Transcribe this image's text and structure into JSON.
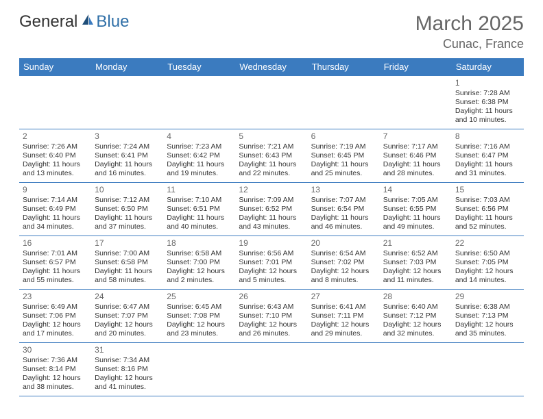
{
  "logo": {
    "general": "General",
    "blue": "Blue"
  },
  "title": "March 2025",
  "location": "Cunac, France",
  "weekdays": [
    "Sunday",
    "Monday",
    "Tuesday",
    "Wednesday",
    "Thursday",
    "Friday",
    "Saturday"
  ],
  "colors": {
    "header_bg": "#3b7bbf",
    "header_fg": "#ffffff",
    "border": "#3b7bbf",
    "title_fg": "#666666",
    "text_fg": "#333333",
    "logo_blue": "#2f6fa7"
  },
  "grid": [
    [
      null,
      null,
      null,
      null,
      null,
      null,
      {
        "day": "1",
        "sunrise": "Sunrise: 7:28 AM",
        "sunset": "Sunset: 6:38 PM",
        "daylight1": "Daylight: 11 hours",
        "daylight2": "and 10 minutes."
      }
    ],
    [
      {
        "day": "2",
        "sunrise": "Sunrise: 7:26 AM",
        "sunset": "Sunset: 6:40 PM",
        "daylight1": "Daylight: 11 hours",
        "daylight2": "and 13 minutes."
      },
      {
        "day": "3",
        "sunrise": "Sunrise: 7:24 AM",
        "sunset": "Sunset: 6:41 PM",
        "daylight1": "Daylight: 11 hours",
        "daylight2": "and 16 minutes."
      },
      {
        "day": "4",
        "sunrise": "Sunrise: 7:23 AM",
        "sunset": "Sunset: 6:42 PM",
        "daylight1": "Daylight: 11 hours",
        "daylight2": "and 19 minutes."
      },
      {
        "day": "5",
        "sunrise": "Sunrise: 7:21 AM",
        "sunset": "Sunset: 6:43 PM",
        "daylight1": "Daylight: 11 hours",
        "daylight2": "and 22 minutes."
      },
      {
        "day": "6",
        "sunrise": "Sunrise: 7:19 AM",
        "sunset": "Sunset: 6:45 PM",
        "daylight1": "Daylight: 11 hours",
        "daylight2": "and 25 minutes."
      },
      {
        "day": "7",
        "sunrise": "Sunrise: 7:17 AM",
        "sunset": "Sunset: 6:46 PM",
        "daylight1": "Daylight: 11 hours",
        "daylight2": "and 28 minutes."
      },
      {
        "day": "8",
        "sunrise": "Sunrise: 7:16 AM",
        "sunset": "Sunset: 6:47 PM",
        "daylight1": "Daylight: 11 hours",
        "daylight2": "and 31 minutes."
      }
    ],
    [
      {
        "day": "9",
        "sunrise": "Sunrise: 7:14 AM",
        "sunset": "Sunset: 6:49 PM",
        "daylight1": "Daylight: 11 hours",
        "daylight2": "and 34 minutes."
      },
      {
        "day": "10",
        "sunrise": "Sunrise: 7:12 AM",
        "sunset": "Sunset: 6:50 PM",
        "daylight1": "Daylight: 11 hours",
        "daylight2": "and 37 minutes."
      },
      {
        "day": "11",
        "sunrise": "Sunrise: 7:10 AM",
        "sunset": "Sunset: 6:51 PM",
        "daylight1": "Daylight: 11 hours",
        "daylight2": "and 40 minutes."
      },
      {
        "day": "12",
        "sunrise": "Sunrise: 7:09 AM",
        "sunset": "Sunset: 6:52 PM",
        "daylight1": "Daylight: 11 hours",
        "daylight2": "and 43 minutes."
      },
      {
        "day": "13",
        "sunrise": "Sunrise: 7:07 AM",
        "sunset": "Sunset: 6:54 PM",
        "daylight1": "Daylight: 11 hours",
        "daylight2": "and 46 minutes."
      },
      {
        "day": "14",
        "sunrise": "Sunrise: 7:05 AM",
        "sunset": "Sunset: 6:55 PM",
        "daylight1": "Daylight: 11 hours",
        "daylight2": "and 49 minutes."
      },
      {
        "day": "15",
        "sunrise": "Sunrise: 7:03 AM",
        "sunset": "Sunset: 6:56 PM",
        "daylight1": "Daylight: 11 hours",
        "daylight2": "and 52 minutes."
      }
    ],
    [
      {
        "day": "16",
        "sunrise": "Sunrise: 7:01 AM",
        "sunset": "Sunset: 6:57 PM",
        "daylight1": "Daylight: 11 hours",
        "daylight2": "and 55 minutes."
      },
      {
        "day": "17",
        "sunrise": "Sunrise: 7:00 AM",
        "sunset": "Sunset: 6:58 PM",
        "daylight1": "Daylight: 11 hours",
        "daylight2": "and 58 minutes."
      },
      {
        "day": "18",
        "sunrise": "Sunrise: 6:58 AM",
        "sunset": "Sunset: 7:00 PM",
        "daylight1": "Daylight: 12 hours",
        "daylight2": "and 2 minutes."
      },
      {
        "day": "19",
        "sunrise": "Sunrise: 6:56 AM",
        "sunset": "Sunset: 7:01 PM",
        "daylight1": "Daylight: 12 hours",
        "daylight2": "and 5 minutes."
      },
      {
        "day": "20",
        "sunrise": "Sunrise: 6:54 AM",
        "sunset": "Sunset: 7:02 PM",
        "daylight1": "Daylight: 12 hours",
        "daylight2": "and 8 minutes."
      },
      {
        "day": "21",
        "sunrise": "Sunrise: 6:52 AM",
        "sunset": "Sunset: 7:03 PM",
        "daylight1": "Daylight: 12 hours",
        "daylight2": "and 11 minutes."
      },
      {
        "day": "22",
        "sunrise": "Sunrise: 6:50 AM",
        "sunset": "Sunset: 7:05 PM",
        "daylight1": "Daylight: 12 hours",
        "daylight2": "and 14 minutes."
      }
    ],
    [
      {
        "day": "23",
        "sunrise": "Sunrise: 6:49 AM",
        "sunset": "Sunset: 7:06 PM",
        "daylight1": "Daylight: 12 hours",
        "daylight2": "and 17 minutes."
      },
      {
        "day": "24",
        "sunrise": "Sunrise: 6:47 AM",
        "sunset": "Sunset: 7:07 PM",
        "daylight1": "Daylight: 12 hours",
        "daylight2": "and 20 minutes."
      },
      {
        "day": "25",
        "sunrise": "Sunrise: 6:45 AM",
        "sunset": "Sunset: 7:08 PM",
        "daylight1": "Daylight: 12 hours",
        "daylight2": "and 23 minutes."
      },
      {
        "day": "26",
        "sunrise": "Sunrise: 6:43 AM",
        "sunset": "Sunset: 7:10 PM",
        "daylight1": "Daylight: 12 hours",
        "daylight2": "and 26 minutes."
      },
      {
        "day": "27",
        "sunrise": "Sunrise: 6:41 AM",
        "sunset": "Sunset: 7:11 PM",
        "daylight1": "Daylight: 12 hours",
        "daylight2": "and 29 minutes."
      },
      {
        "day": "28",
        "sunrise": "Sunrise: 6:40 AM",
        "sunset": "Sunset: 7:12 PM",
        "daylight1": "Daylight: 12 hours",
        "daylight2": "and 32 minutes."
      },
      {
        "day": "29",
        "sunrise": "Sunrise: 6:38 AM",
        "sunset": "Sunset: 7:13 PM",
        "daylight1": "Daylight: 12 hours",
        "daylight2": "and 35 minutes."
      }
    ],
    [
      {
        "day": "30",
        "sunrise": "Sunrise: 7:36 AM",
        "sunset": "Sunset: 8:14 PM",
        "daylight1": "Daylight: 12 hours",
        "daylight2": "and 38 minutes."
      },
      {
        "day": "31",
        "sunrise": "Sunrise: 7:34 AM",
        "sunset": "Sunset: 8:16 PM",
        "daylight1": "Daylight: 12 hours",
        "daylight2": "and 41 minutes."
      },
      null,
      null,
      null,
      null,
      null
    ]
  ]
}
